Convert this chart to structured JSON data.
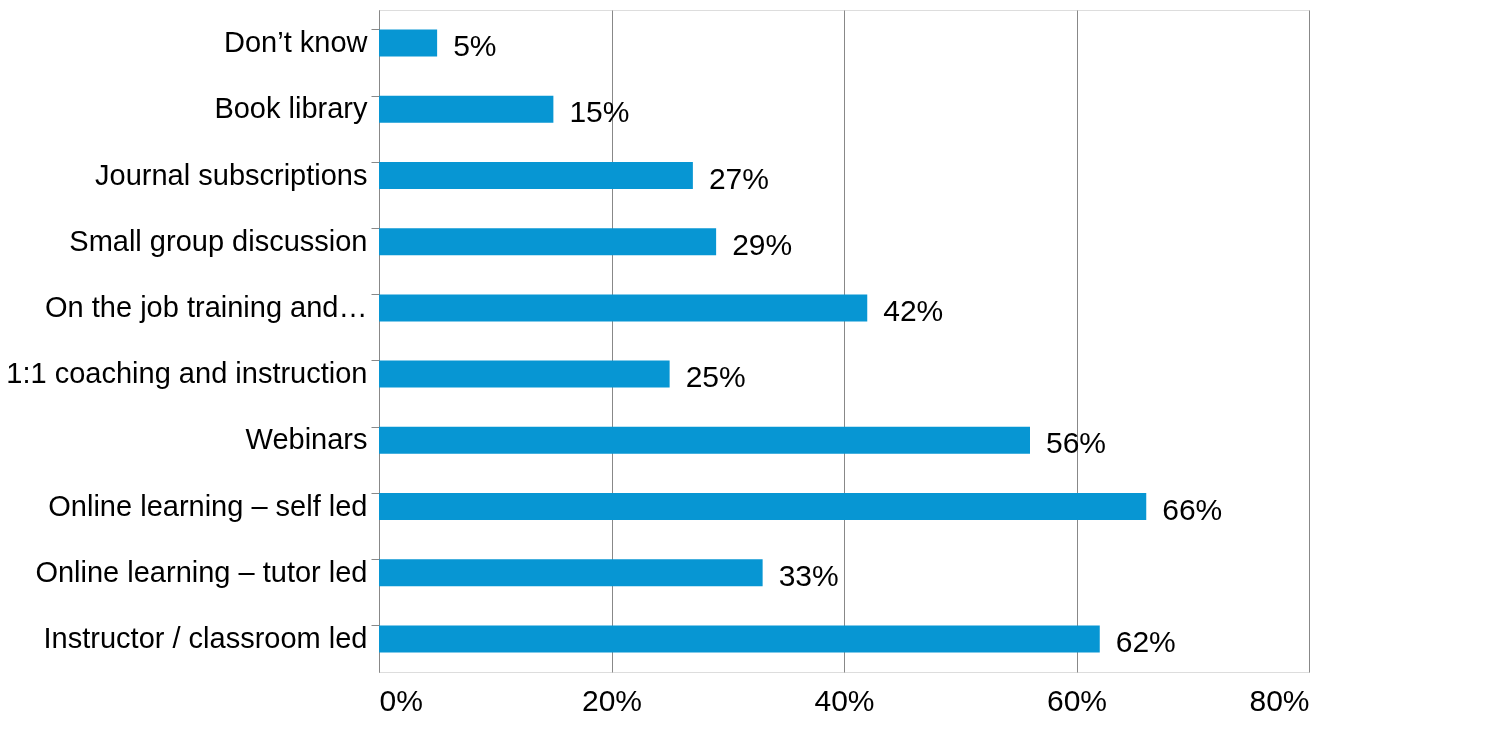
{
  "chart_data": {
    "type": "bar",
    "orientation": "horizontal",
    "categories": [
      "Don’t know",
      "Book library",
      "Journal subscriptions",
      "Small group discussion",
      "On the job training and…",
      "1:1 coaching and instruction",
      "Webinars",
      "Online learning – self led",
      "Online learning – tutor led",
      "Instructor / classroom led"
    ],
    "values": [
      5,
      15,
      27,
      29,
      42,
      25,
      56,
      66,
      33,
      62
    ],
    "value_labels": [
      "5%",
      "15%",
      "27%",
      "29%",
      "42%",
      "25%",
      "56%",
      "66%",
      "33%",
      "62%"
    ],
    "color": "#0796d3",
    "xlim": [
      0,
      80
    ],
    "xticks": [
      {
        "value": 0,
        "label": "0%"
      },
      {
        "value": 20,
        "label": "20%"
      },
      {
        "value": 40,
        "label": "40%"
      },
      {
        "value": 60,
        "label": "60%"
      },
      {
        "value": 80,
        "label": "80%"
      }
    ],
    "grid": "x"
  }
}
